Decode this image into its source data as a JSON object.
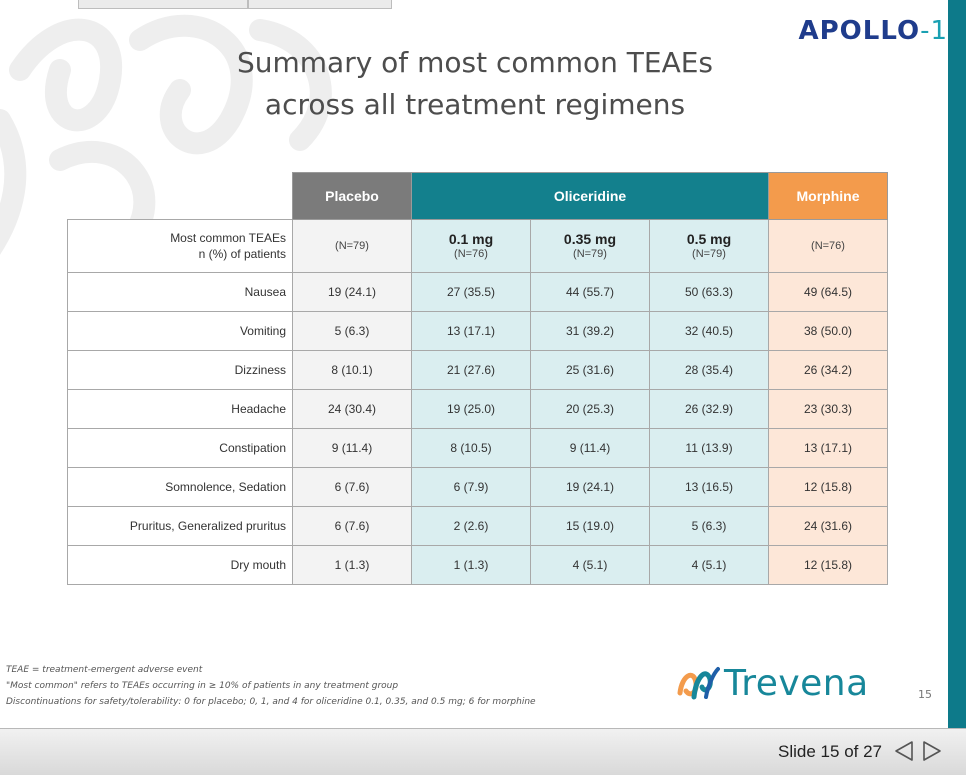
{
  "brand": {
    "apollo": "APOLLO",
    "apollo_suffix": "-1",
    "trevena": "Trevena"
  },
  "title": {
    "line1": "Summary of most common TEAEs",
    "line2": "across all treatment regimens"
  },
  "table": {
    "groups": {
      "placebo": "Placebo",
      "oliceridine": "Oliceridine",
      "morphine": "Morphine"
    },
    "subheader": {
      "label_line1": "Most common TEAEs",
      "label_line2": "n (%) of patients",
      "placebo_n": "(N=79)",
      "doses": [
        {
          "dose": "0.1 mg",
          "n": "(N=76)"
        },
        {
          "dose": "0.35 mg",
          "n": "(N=79)"
        },
        {
          "dose": "0.5 mg",
          "n": "(N=79)"
        }
      ],
      "morphine_n": "(N=76)"
    },
    "rows": [
      {
        "label": "Nausea",
        "placebo": "19 (24.1)",
        "o1": "27 (35.5)",
        "o2": "44 (55.7)",
        "o3": "50 (63.3)",
        "morphine": "49 (64.5)"
      },
      {
        "label": "Vomiting",
        "placebo": "5 (6.3)",
        "o1": "13 (17.1)",
        "o2": "31 (39.2)",
        "o3": "32 (40.5)",
        "morphine": "38 (50.0)"
      },
      {
        "label": "Dizziness",
        "placebo": "8 (10.1)",
        "o1": "21 (27.6)",
        "o2": "25 (31.6)",
        "o3": "28 (35.4)",
        "morphine": "26 (34.2)"
      },
      {
        "label": "Headache",
        "placebo": "24 (30.4)",
        "o1": "19 (25.0)",
        "o2": "20 (25.3)",
        "o3": "26 (32.9)",
        "morphine": "23 (30.3)"
      },
      {
        "label": "Constipation",
        "placebo": "9 (11.4)",
        "o1": "8 (10.5)",
        "o2": "9 (11.4)",
        "o3": "11 (13.9)",
        "morphine": "13 (17.1)"
      },
      {
        "label": "Somnolence, Sedation",
        "placebo": "6 (7.6)",
        "o1": "6 (7.9)",
        "o2": "19 (24.1)",
        "o3": "13 (16.5)",
        "morphine": "12 (15.8)"
      },
      {
        "label": "Pruritus, Generalized pruritus",
        "placebo": "6 (7.6)",
        "o1": "2 (2.6)",
        "o2": "15 (19.0)",
        "o3": "5 (6.3)",
        "morphine": "24 (31.6)"
      },
      {
        "label": "Dry mouth",
        "placebo": "1 (1.3)",
        "o1": "1 (1.3)",
        "o2": "4 (5.1)",
        "o3": "4 (5.1)",
        "morphine": "12 (15.8)"
      }
    ]
  },
  "footnotes": [
    "TEAE = treatment-emergent adverse event",
    "\"Most common\" refers to TEAEs occurring in ≥ 10% of patients in any treatment group",
    "Discontinuations for safety/tolerability: 0 for placebo; 0, 1, and 4 for oliceridine 0.1, 0.35, and 0.5 mg; 6 for morphine"
  ],
  "page_number": "15",
  "statusbar": {
    "slide_label": "Slide 15 of 27"
  },
  "icons": {
    "prev": "prev-slide-triangle-icon",
    "next": "next-slide-triangle-icon",
    "logo": "trevena-logo-icon"
  },
  "colors": {
    "teal": "#13808d",
    "orange": "#f39b4c",
    "placebo_grey": "#7b7b7b",
    "brand_blue": "#1f3c8c"
  }
}
